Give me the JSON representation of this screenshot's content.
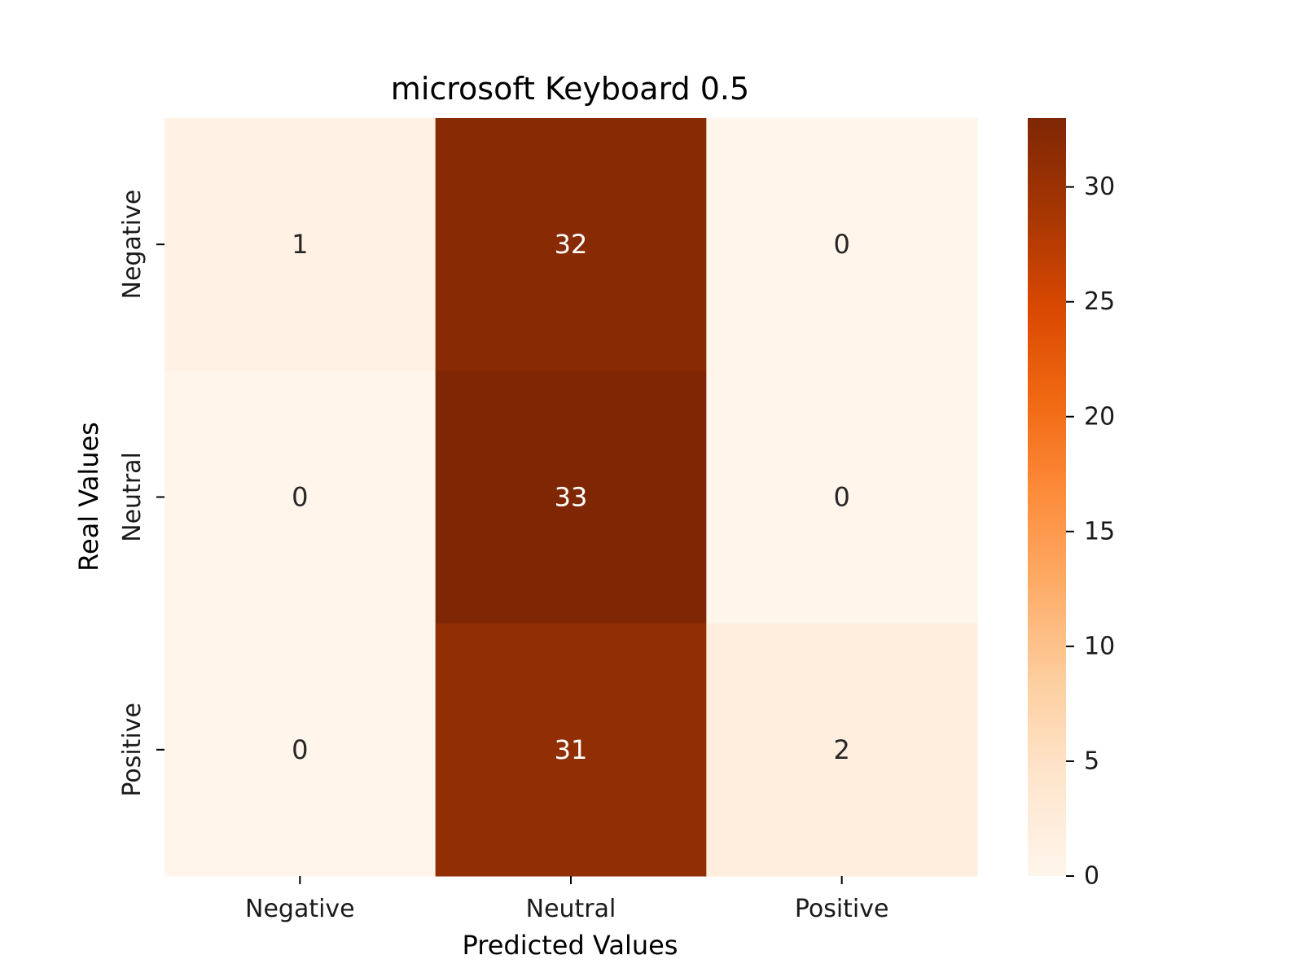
{
  "chart_data": {
    "type": "heatmap",
    "title": "microsoft Keyboard 0.5",
    "xlabel": "Predicted Values",
    "ylabel": "Real Values",
    "x_categories": [
      "Negative",
      "Neutral",
      "Positive"
    ],
    "y_categories": [
      "Negative",
      "Neutral",
      "Positive"
    ],
    "values": [
      [
        1,
        32,
        0
      ],
      [
        0,
        33,
        0
      ],
      [
        0,
        31,
        2
      ]
    ],
    "colorbar": {
      "min": 0,
      "max": 33,
      "ticks": [
        0,
        5,
        10,
        15,
        20,
        25,
        30
      ]
    },
    "colormap": "Oranges",
    "colormap_stops": [
      "#fff5eb",
      "#fee6ce",
      "#fdd0a2",
      "#fdae6b",
      "#fd8d3c",
      "#f16913",
      "#d94801",
      "#a63603",
      "#7f2704"
    ],
    "annotation_text_light": "#ffffff",
    "annotation_text_dark": "#262626"
  }
}
